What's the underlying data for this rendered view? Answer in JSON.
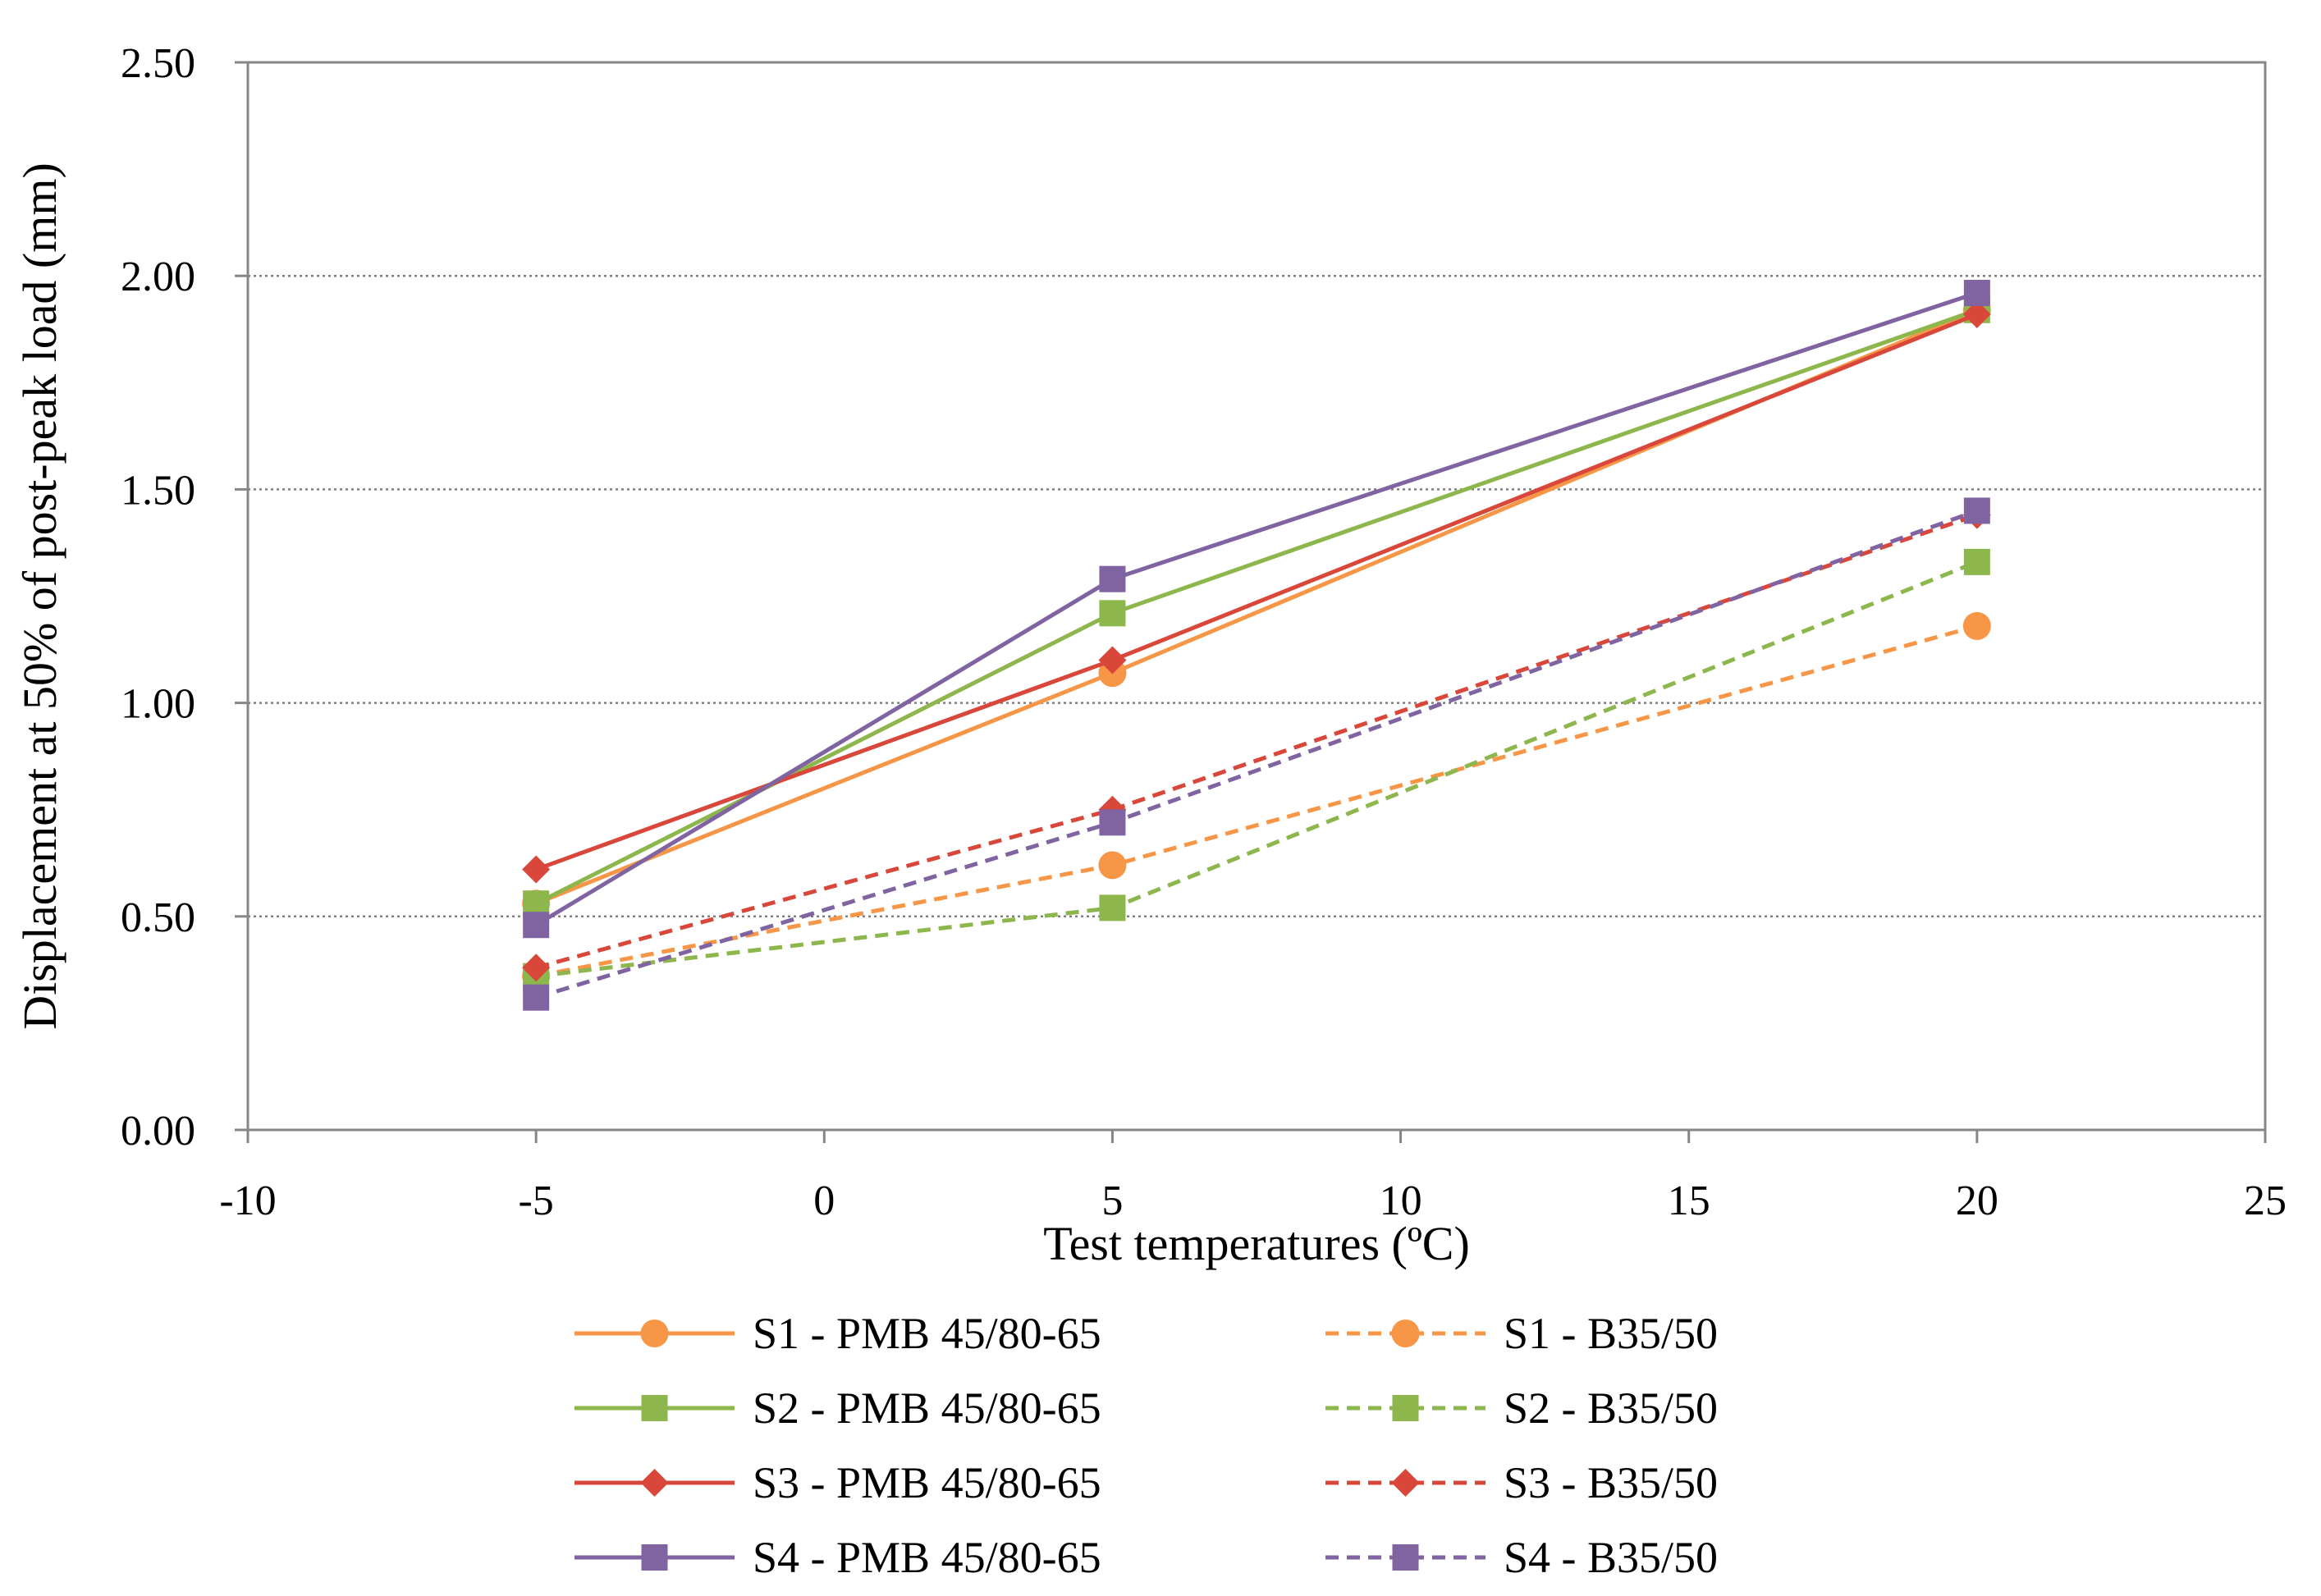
{
  "chart_data": {
    "type": "line",
    "title": "",
    "xlabel": "Test temperatures (ºC)",
    "ylabel": "Displacement at 50% of post-peak load (mm)",
    "xlim": [
      -10,
      25
    ],
    "ylim": [
      0,
      2.5
    ],
    "x_ticks": [
      -10,
      -5,
      0,
      5,
      10,
      15,
      20,
      25
    ],
    "x_tick_labels": [
      "-10",
      "-5",
      "0",
      "5",
      "10",
      "15",
      "20",
      "25"
    ],
    "y_ticks": [
      0,
      0.5,
      1.0,
      1.5,
      2.0,
      2.5
    ],
    "y_tick_labels": [
      "0.00",
      "0.50",
      "1.00",
      "1.50",
      "2.00",
      "2.50"
    ],
    "grid": "horizontal dotted",
    "legend_position": "bottom",
    "x": [
      -5,
      5,
      20
    ],
    "series": [
      {
        "name": "S1 - PMB 45/80-65",
        "values": [
          0.53,
          1.07,
          1.92
        ],
        "color": "#F79646",
        "dash": "solid",
        "marker": "circle"
      },
      {
        "name": "S2 - PMB 45/80-65",
        "values": [
          0.53,
          1.21,
          1.92
        ],
        "color": "#8DB64C",
        "dash": "solid",
        "marker": "square"
      },
      {
        "name": "S3 - PMB 45/80-65",
        "values": [
          0.61,
          1.1,
          1.91
        ],
        "color": "#D9473B",
        "dash": "solid",
        "marker": "diamond"
      },
      {
        "name": "S4 - PMB 45/80-65",
        "values": [
          0.48,
          1.29,
          1.96
        ],
        "color": "#8064A2",
        "dash": "solid",
        "marker": "square"
      },
      {
        "name": "S1 - B35/50",
        "values": [
          0.36,
          0.62,
          1.18
        ],
        "color": "#F79646",
        "dash": "dashed",
        "marker": "circle"
      },
      {
        "name": "S2 - B35/50",
        "values": [
          0.36,
          0.52,
          1.33
        ],
        "color": "#8DB64C",
        "dash": "dashed",
        "marker": "square"
      },
      {
        "name": "S3 - B35/50",
        "values": [
          0.38,
          0.75,
          1.44
        ],
        "color": "#D9473B",
        "dash": "dashed",
        "marker": "diamond"
      },
      {
        "name": "S4 - B35/50",
        "values": [
          0.31,
          0.72,
          1.45
        ],
        "color": "#8064A2",
        "dash": "dashed",
        "marker": "square"
      }
    ]
  }
}
